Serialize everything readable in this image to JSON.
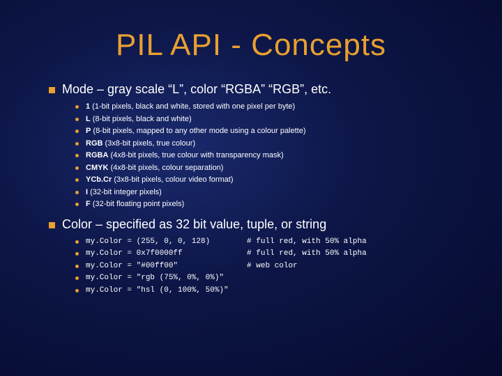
{
  "colors": {
    "accent": "#e8a030",
    "text": "#ffffff",
    "bg_center": "#1a2a6e",
    "bg_outer": "#050a2e"
  },
  "typography": {
    "title_font": "Impact",
    "title_size_pt": 44,
    "section_size_pt": 18,
    "sub_size_pt": 11,
    "mono_font": "Courier New"
  },
  "title": "PIL API - Concepts",
  "sections": [
    {
      "heading": "Mode – gray scale “L”, color “RGBA” “RGB”, etc.",
      "items": [
        {
          "bold": "1",
          "rest": " (1-bit pixels, black and white, stored with one pixel per byte)"
        },
        {
          "bold": "L",
          "rest": " (8-bit pixels, black and white)"
        },
        {
          "bold": "P",
          "rest": " (8-bit pixels, mapped to any other mode using a colour palette)"
        },
        {
          "bold": "RGB",
          "rest": " (3x8-bit pixels, true colour)"
        },
        {
          "bold": "RGBA",
          "rest": " (4x8-bit pixels, true colour with transparency mask)"
        },
        {
          "bold": "CMYK",
          "rest": " (4x8-bit pixels, colour separation)"
        },
        {
          "bold": "YCb.Cr",
          "rest": " (3x8-bit pixels, colour video format)"
        },
        {
          "bold": "I",
          "rest": " (32-bit integer pixels)"
        },
        {
          "bold": "F",
          "rest": " (32-bit floating point pixels)"
        }
      ]
    },
    {
      "heading": "Color – specified as 32 bit value, tuple, or string",
      "code_items": [
        "my.Color = (255, 0, 0, 128)        # full red, with 50% alpha",
        "my.Color = 0x7f0000ff              # full red, with 50% alpha",
        "my.Color = \"#00ff00\"               # web color",
        "my.Color = \"rgb (75%, 0%, 0%)\"",
        "my.Color = \"hsl (0, 100%, 50%)\""
      ]
    }
  ]
}
